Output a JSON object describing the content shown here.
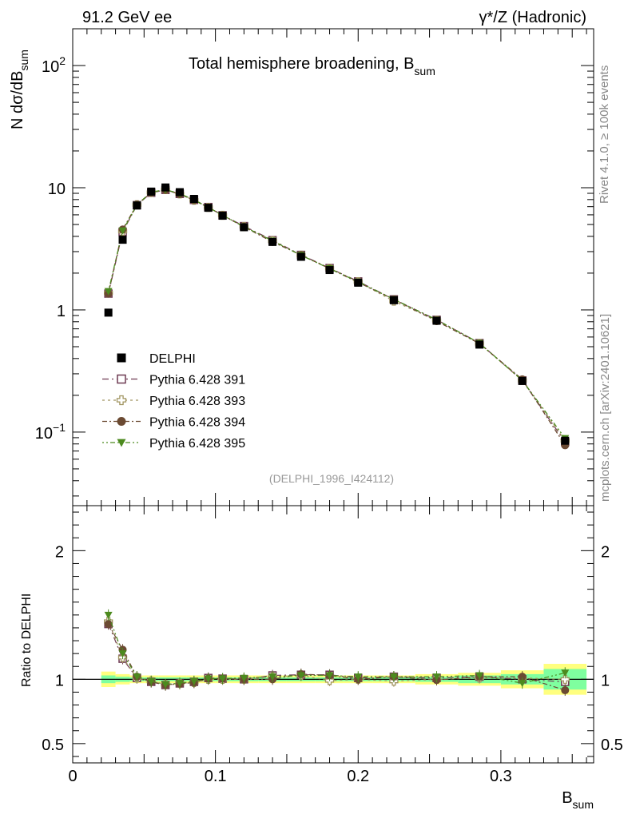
{
  "header": {
    "left": "91.2 GeV ee",
    "right_gamma": "γ",
    "right_rest": "*/Z (Hadronic)"
  },
  "side": {
    "rivet": "Rivet 4.1.0, ≥ 100k events",
    "mcplots": "mcplots.cern.ch [arXiv:2401.10621]"
  },
  "colors": {
    "data": "#000000",
    "p391": "#6e3a52",
    "p393": "#a09460",
    "p394": "#6b4a32",
    "p395": "#4c8a1e",
    "band_yellow": "#ffff7f",
    "band_green": "#7fff9f"
  },
  "chart_data": [
    {
      "type": "scatter",
      "title": "Total hemisphere broadening, B",
      "title_sub": "sum",
      "ylabel_main": "N  dσ/dB",
      "ylabel_sub": "sum",
      "yscale": "log",
      "ylim": [
        0.025,
        200
      ],
      "xlim": [
        0,
        0.365
      ],
      "yticks": [
        {
          "value": 100,
          "base": "10",
          "exp": "2"
        },
        {
          "value": 10,
          "base": "10",
          "exp": ""
        },
        {
          "value": 1,
          "base": "1",
          "exp": ""
        },
        {
          "value": 0.1,
          "base": "10",
          "exp": "−1"
        }
      ],
      "analysis_tag": "(DELPHI_1996_I424112)",
      "x": [
        0.025,
        0.035,
        0.045,
        0.055,
        0.065,
        0.075,
        0.085,
        0.095,
        0.105,
        0.12,
        0.14,
        0.16,
        0.18,
        0.2,
        0.225,
        0.255,
        0.285,
        0.315,
        0.345
      ],
      "series": [
        {
          "name": "DELPHI",
          "key": "data",
          "marker": "square-filled",
          "values": [
            0.95,
            3.75,
            7.15,
            9.3,
            10.05,
            9.2,
            8.1,
            6.85,
            5.9,
            4.75,
            3.6,
            2.72,
            2.12,
            1.67,
            1.2,
            0.815,
            0.52,
            0.262,
            0.085
          ]
        },
        {
          "name": "Pythia 6.428 391",
          "key": "p391",
          "marker": "square-open",
          "dash": "8,4,2,4",
          "values": [
            1.36,
            4.35,
            7.2,
            9.1,
            9.6,
            8.9,
            7.95,
            6.95,
            5.95,
            4.85,
            3.72,
            2.82,
            2.2,
            1.71,
            1.22,
            0.83,
            0.535,
            0.265,
            0.083
          ]
        },
        {
          "name": "Pythia 6.428 393",
          "key": "p393",
          "marker": "cross-open",
          "dash": "3,4",
          "values": [
            1.38,
            4.4,
            7.25,
            9.15,
            9.65,
            8.9,
            7.9,
            6.9,
            5.95,
            4.8,
            3.68,
            2.8,
            2.19,
            1.7,
            1.18,
            0.82,
            0.53,
            0.265,
            0.085
          ]
        },
        {
          "name": "Pythia 6.428 394",
          "key": "p394",
          "marker": "circle-filled",
          "dash": "6,3,2,3",
          "values": [
            1.36,
            4.55,
            7.3,
            9.1,
            9.6,
            8.85,
            7.9,
            6.9,
            5.95,
            4.78,
            3.6,
            2.82,
            2.18,
            1.68,
            1.22,
            0.81,
            0.53,
            0.27,
            0.078
          ]
        },
        {
          "name": "Pythia 6.428 395",
          "key": "p395",
          "marker": "triangle-down-filled",
          "dash": "2,3,2,3,6,3",
          "values": [
            1.42,
            4.45,
            7.25,
            9.2,
            9.65,
            8.95,
            7.95,
            6.9,
            5.95,
            4.8,
            3.68,
            2.8,
            2.18,
            1.7,
            1.22,
            0.83,
            0.535,
            0.265,
            0.089
          ]
        }
      ]
    },
    {
      "type": "scatter",
      "title": "ratio panel",
      "ylabel": "Ratio to DELPHI",
      "xlabel_main": "B",
      "xlabel_sub": "sum",
      "ylim": [
        0.35,
        2.35
      ],
      "xlim": [
        0,
        0.365
      ],
      "yticks": [
        {
          "value": 2,
          "label": "2"
        },
        {
          "value": 1,
          "label": "1"
        },
        {
          "value": 0.5,
          "label": "0.5"
        }
      ],
      "xticks": [
        {
          "value": 0,
          "label": "0"
        },
        {
          "value": 0.1,
          "label": "0.1"
        },
        {
          "value": 0.2,
          "label": "0.2"
        },
        {
          "value": 0.3,
          "label": "0.3"
        }
      ],
      "x": [
        0.025,
        0.035,
        0.045,
        0.055,
        0.065,
        0.075,
        0.085,
        0.095,
        0.105,
        0.12,
        0.14,
        0.16,
        0.18,
        0.2,
        0.225,
        0.255,
        0.285,
        0.315,
        0.345
      ],
      "bin_edges": [
        0.02,
        0.03,
        0.04,
        0.05,
        0.06,
        0.07,
        0.08,
        0.09,
        0.1,
        0.11,
        0.13,
        0.15,
        0.17,
        0.19,
        0.21,
        0.24,
        0.27,
        0.3,
        0.33,
        0.36
      ],
      "band_total": [
        0.06,
        0.04,
        0.03,
        0.03,
        0.03,
        0.03,
        0.03,
        0.03,
        0.03,
        0.03,
        0.03,
        0.03,
        0.03,
        0.03,
        0.03,
        0.04,
        0.05,
        0.07,
        0.12
      ],
      "band_stat": [
        0.03,
        0.02,
        0.015,
        0.015,
        0.015,
        0.015,
        0.015,
        0.015,
        0.015,
        0.015,
        0.015,
        0.015,
        0.015,
        0.015,
        0.015,
        0.02,
        0.03,
        0.04,
        0.08
      ],
      "series": [
        {
          "name": "Pythia 6.428 391",
          "key": "p391",
          "marker": "square-open",
          "dash": "8,4,2,4",
          "values": [
            1.43,
            1.16,
            1.01,
            0.98,
            0.955,
            0.968,
            0.98,
            1.01,
            1.005,
            1.0,
            1.03,
            1.035,
            1.035,
            1.01,
            1.02,
            1.01,
            1.02,
            1.0,
            0.98
          ]
        },
        {
          "name": "Pythia 6.428 393",
          "key": "p393",
          "marker": "cross-open",
          "dash": "3,4",
          "values": [
            1.45,
            1.17,
            1.01,
            0.985,
            0.96,
            0.968,
            0.975,
            1.0,
            1.0,
            1.0,
            1.02,
            1.03,
            0.99,
            1.0,
            0.985,
            1.0,
            1.01,
            1.01,
            1.0
          ]
        },
        {
          "name": "Pythia 6.428 394",
          "key": "p394",
          "marker": "circle-filled",
          "dash": "6,3,2,3",
          "values": [
            1.43,
            1.23,
            1.02,
            0.98,
            0.955,
            0.965,
            0.975,
            1.005,
            1.005,
            1.0,
            1.0,
            1.04,
            1.03,
            1.0,
            1.02,
            0.995,
            1.02,
            1.02,
            0.915
          ]
        },
        {
          "name": "Pythia 6.428 395",
          "key": "p395",
          "marker": "triangle-down-filled",
          "dash": "2,3,2,3,6,3",
          "values": [
            1.5,
            1.2,
            1.02,
            0.985,
            0.96,
            0.97,
            0.985,
            1.005,
            1.005,
            1.01,
            1.02,
            1.03,
            1.03,
            1.02,
            1.02,
            1.02,
            1.03,
            0.97,
            1.05
          ]
        }
      ]
    }
  ]
}
